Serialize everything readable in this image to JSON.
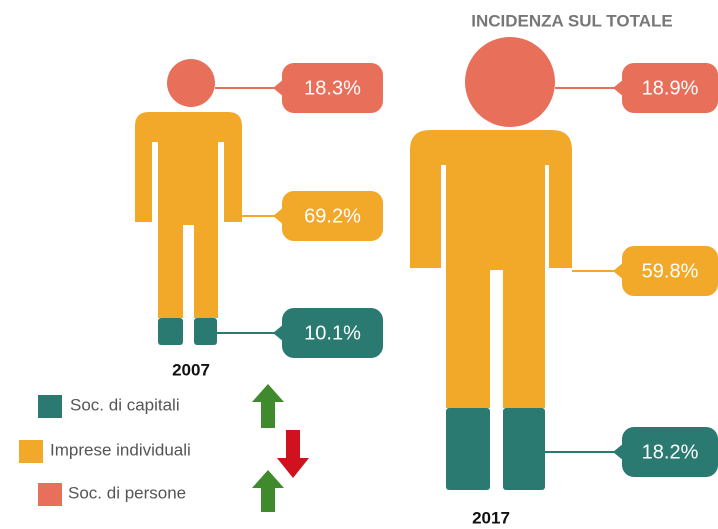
{
  "chart_data": {
    "type": "pictogram",
    "subtitle": "INCIDENZA SUL TOTALE",
    "categories": [
      "2007",
      "2017"
    ],
    "series": [
      {
        "name": "Soc. di capitali",
        "color": "#2a7a72",
        "values": [
          10.1,
          18.2
        ],
        "value_labels": [
          "10.1%",
          "18.2%"
        ]
      },
      {
        "name": "Imprese individuali",
        "color": "#f2a829",
        "values": [
          69.2,
          59.8
        ],
        "value_labels": [
          "69.2%",
          "59.8%"
        ]
      },
      {
        "name": "Soc. di persone",
        "color": "#e8705a",
        "values": [
          18.3,
          18.9
        ],
        "value_labels": [
          "18.3%",
          "18.9%"
        ]
      }
    ]
  }
}
